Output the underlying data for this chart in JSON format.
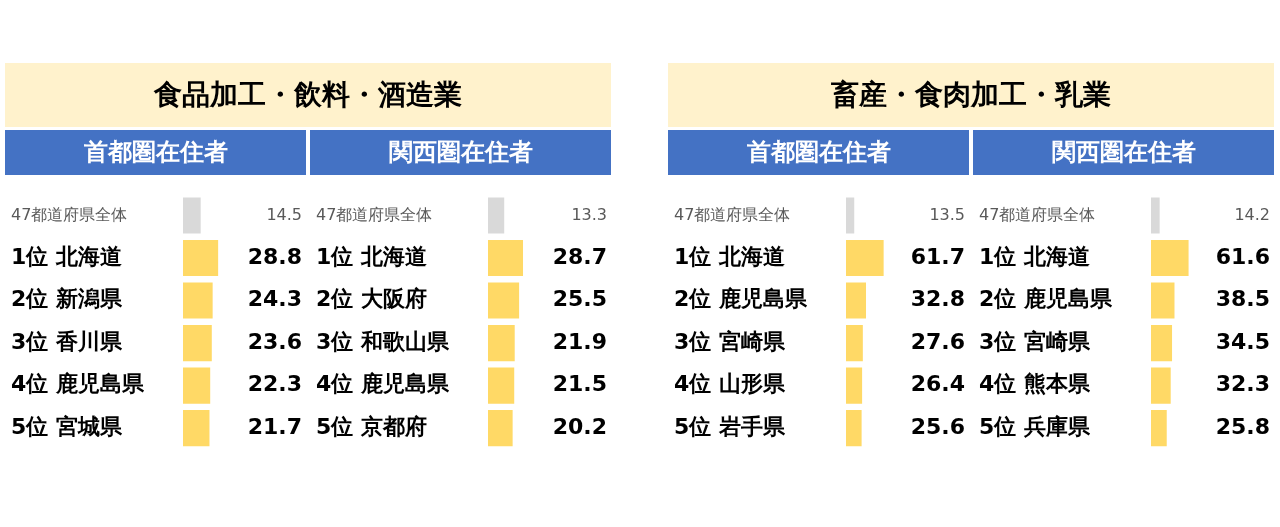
{
  "chart_data": [
    {
      "type": "bar",
      "orientation": "horizontal",
      "title": "食品加工・飲料・酒造業",
      "subtitle": "首都圏在住者",
      "categories": [
        "47都道府県全体",
        "1位 北海道",
        "2位 新潟県",
        "3位 香川県",
        "4位 鹿児島県",
        "5位 宮城県"
      ],
      "values": [
        14.5,
        28.8,
        24.3,
        23.6,
        22.3,
        21.7
      ],
      "colors": [
        "#d9d9d9",
        "#ffd966",
        "#ffd966",
        "#ffd966",
        "#ffd966",
        "#ffd966"
      ],
      "data_labels": true,
      "grid": false,
      "legend": false
    },
    {
      "type": "bar",
      "orientation": "horizontal",
      "subtitle": "関西圏在住者",
      "categories": [
        "47都道府県全体",
        "1位 北海道",
        "2位 大阪府",
        "3位 和歌山県",
        "4位 鹿児島県",
        "5位 京都府"
      ],
      "values": [
        13.3,
        28.7,
        25.5,
        21.9,
        21.5,
        20.2
      ],
      "colors": [
        "#d9d9d9",
        "#ffd966",
        "#ffd966",
        "#ffd966",
        "#ffd966",
        "#ffd966"
      ],
      "data_labels": true,
      "grid": false,
      "legend": false
    },
    {
      "type": "bar",
      "orientation": "horizontal",
      "title": "畜産・食肉加工・乳業",
      "subtitle": "首都圏在住者",
      "categories": [
        "47都道府県全体",
        "1位 北海道",
        "2位 鹿児島県",
        "3位 宮崎県",
        "4位 山形県",
        "5位 岩手県"
      ],
      "values": [
        13.5,
        61.7,
        32.8,
        27.6,
        26.4,
        25.6
      ],
      "colors": [
        "#d9d9d9",
        "#ffd966",
        "#ffd966",
        "#ffd966",
        "#ffd966",
        "#ffd966"
      ],
      "data_labels": true,
      "grid": false,
      "legend": false
    },
    {
      "type": "bar",
      "orientation": "horizontal",
      "subtitle": "関西圏在住者",
      "categories": [
        "47都道府県全体",
        "1位 北海道",
        "2位 鹿児島県",
        "3位 宮崎県",
        "4位 熊本県",
        "5位 兵庫県"
      ],
      "values": [
        14.2,
        61.6,
        38.5,
        34.5,
        32.3,
        25.8
      ],
      "colors": [
        "#d9d9d9",
        "#ffd966",
        "#ffd966",
        "#ffd966",
        "#ffd966",
        "#ffd966"
      ],
      "data_labels": true,
      "grid": false,
      "legend": false
    }
  ]
}
